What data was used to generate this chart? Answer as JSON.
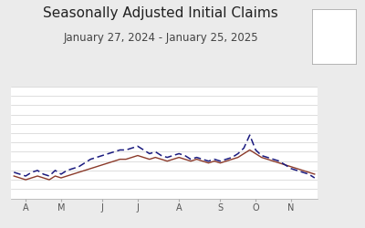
{
  "title": "Seasonally Adjusted Initial Claims",
  "subtitle": "January 27, 2024 - January 25, 2025",
  "title_fontsize": 11,
  "subtitle_fontsize": 8.5,
  "background_color": "#ebebeb",
  "plot_bg_color": "#ffffff",
  "x_tick_labels": [
    "A",
    "M",
    "J",
    "J",
    "A",
    "S",
    "O",
    "N"
  ],
  "solid_color": "#8B3A2A",
  "dashed_color": "#1a1a7e",
  "ylim": [
    200,
    260
  ],
  "xlim": [
    -0.5,
    51.5
  ],
  "solid_values": [
    212,
    211,
    210,
    211,
    212,
    211,
    210,
    212,
    211,
    212,
    213,
    214,
    215,
    216,
    217,
    218,
    219,
    220,
    221,
    221,
    222,
    223,
    222,
    221,
    222,
    221,
    220,
    221,
    222,
    221,
    220,
    221,
    220,
    219,
    220,
    219,
    220,
    221,
    222,
    224,
    226,
    224,
    222,
    221,
    220,
    219,
    218,
    217,
    216,
    215,
    214,
    213
  ],
  "dashed_values": [
    214,
    213,
    212,
    214,
    215,
    213,
    212,
    215,
    213,
    215,
    216,
    217,
    219,
    221,
    222,
    223,
    224,
    225,
    226,
    226,
    227,
    228,
    226,
    224,
    225,
    223,
    222,
    223,
    224,
    223,
    221,
    222,
    221,
    220,
    221,
    220,
    221,
    222,
    224,
    227,
    234,
    226,
    223,
    222,
    221,
    220,
    218,
    216,
    215,
    214,
    213,
    211
  ],
  "month_positions": [
    2,
    8,
    15,
    21,
    28,
    35,
    41,
    47
  ],
  "hgrid_vals": [
    205,
    210,
    215,
    220,
    225,
    230,
    235,
    240,
    245,
    250,
    255
  ]
}
